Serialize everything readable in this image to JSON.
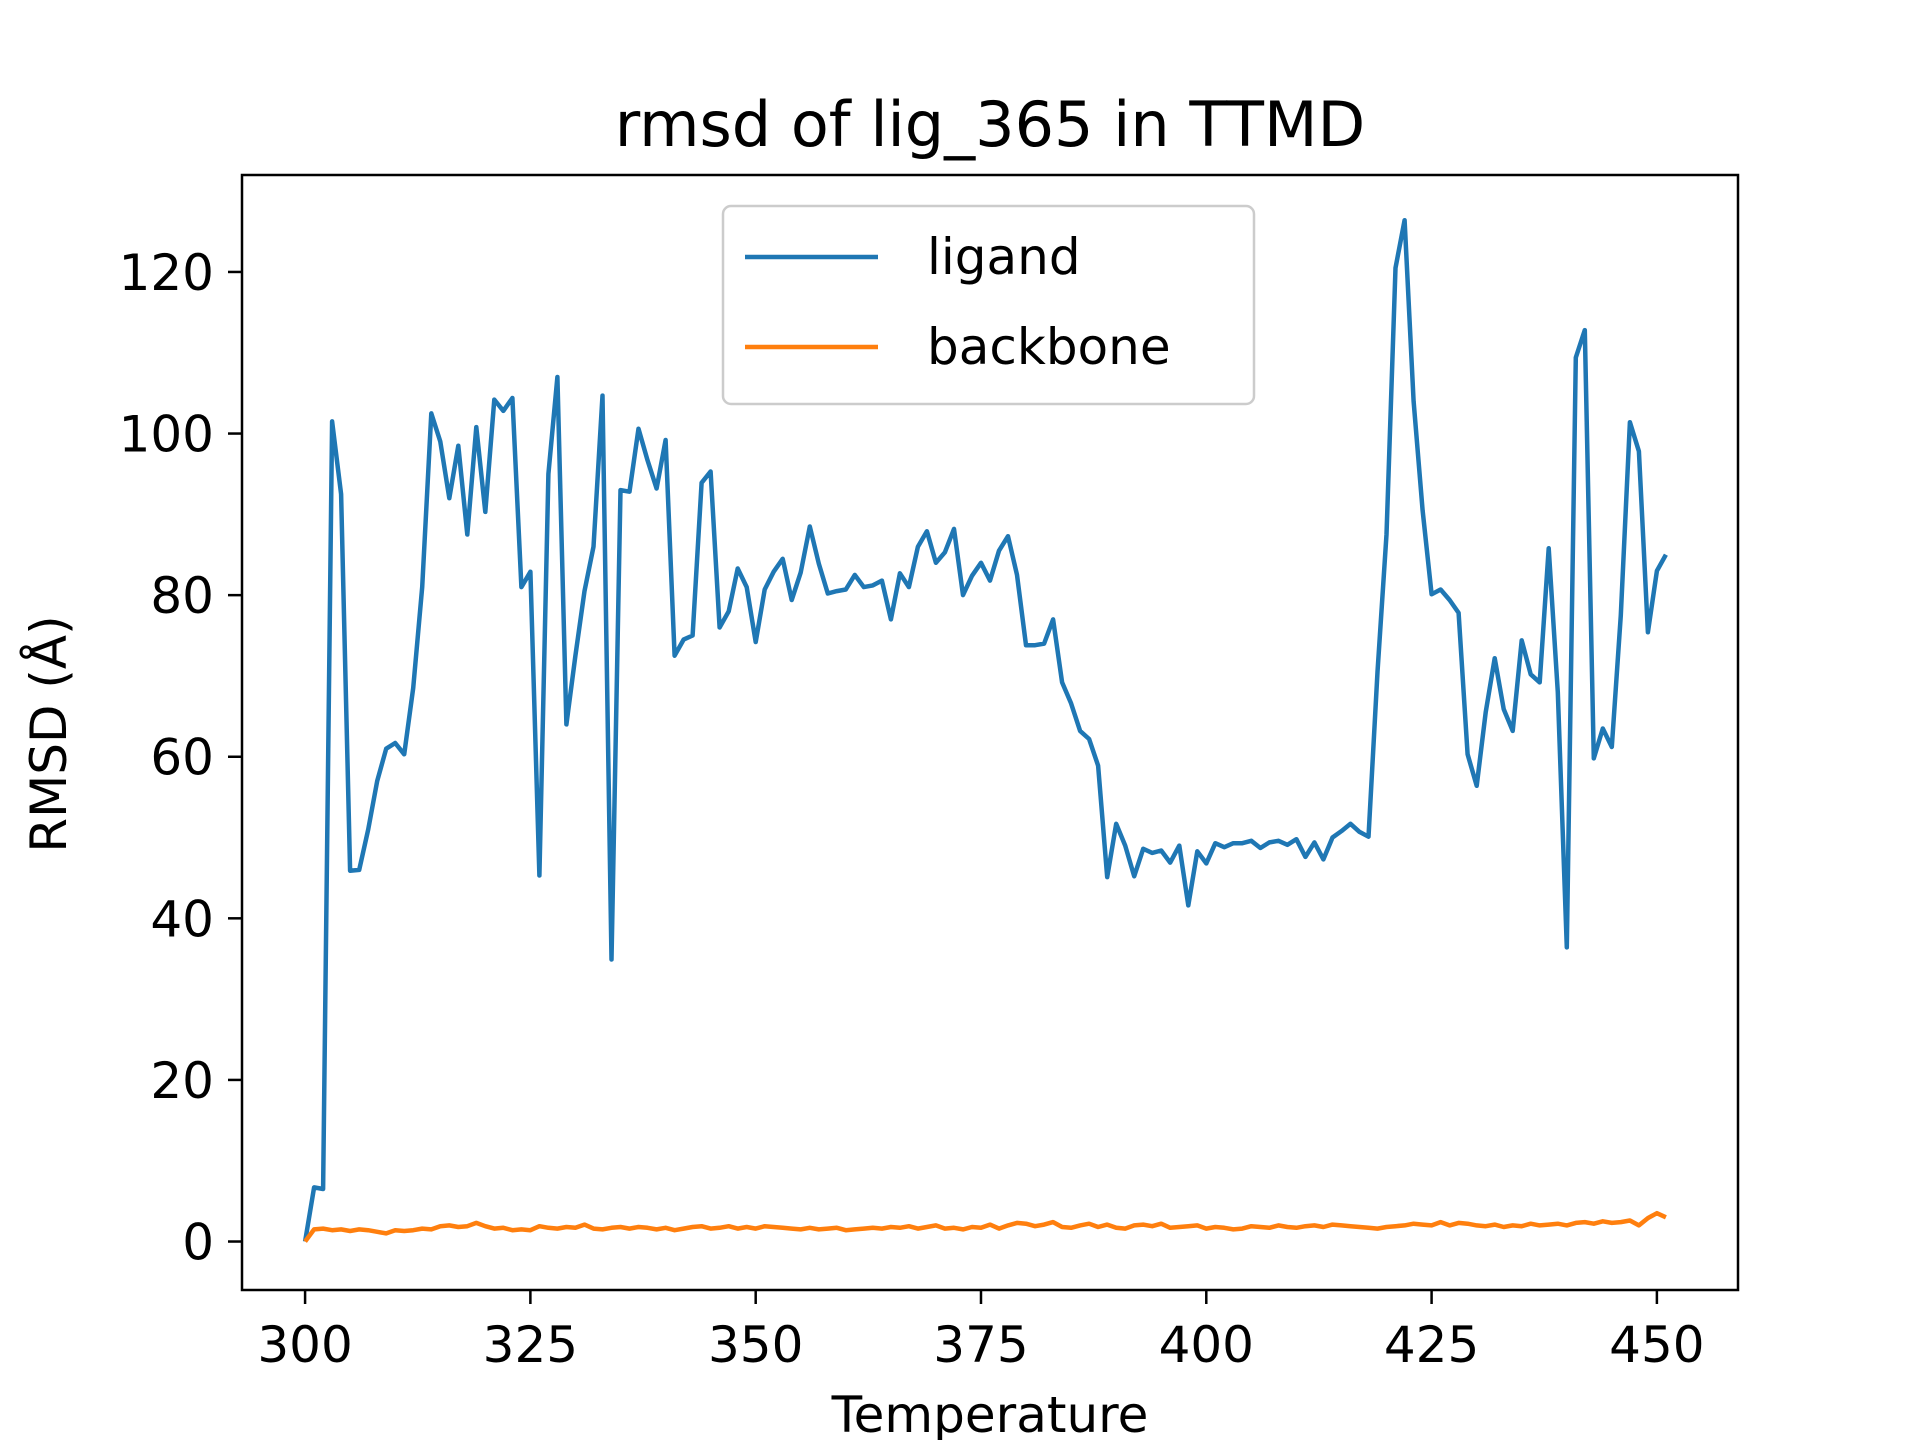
{
  "chart_data": {
    "type": "line",
    "title": "rmsd of lig_365 in TTMD",
    "xlabel": "Temperature",
    "ylabel": "RMSD (Å)",
    "xlim": [
      293,
      459
    ],
    "ylim": [
      -6,
      132
    ],
    "xticks": [
      300,
      325,
      350,
      375,
      400,
      425,
      450
    ],
    "yticks": [
      0,
      20,
      40,
      60,
      80,
      100,
      120
    ],
    "xtick_labels": [
      "300",
      "325",
      "350",
      "375",
      "400",
      "425",
      "450"
    ],
    "ytick_labels": [
      "0",
      "20",
      "40",
      "60",
      "80",
      "100",
      "120"
    ],
    "grid": false,
    "legend_position": "upper center",
    "series": [
      {
        "name": "ligand",
        "color": "#1f77b4",
        "x": [
          300,
          301,
          302,
          303,
          304,
          305,
          306,
          307,
          308,
          309,
          310,
          311,
          312,
          313,
          314,
          315,
          316,
          317,
          318,
          319,
          320,
          321,
          322,
          323,
          324,
          325,
          326,
          327,
          328,
          329,
          330,
          331,
          332,
          333,
          334,
          335,
          336,
          337,
          338,
          339,
          340,
          341,
          342,
          343,
          344,
          345,
          346,
          347,
          348,
          349,
          350,
          351,
          352,
          353,
          354,
          355,
          356,
          357,
          358,
          359,
          360,
          361,
          362,
          363,
          364,
          365,
          366,
          367,
          368,
          369,
          370,
          371,
          372,
          373,
          374,
          375,
          376,
          377,
          378,
          379,
          380,
          381,
          382,
          383,
          384,
          385,
          386,
          387,
          388,
          389,
          390,
          391,
          392,
          393,
          394,
          395,
          396,
          397,
          398,
          399,
          400,
          401,
          402,
          403,
          404,
          405,
          406,
          407,
          408,
          409,
          410,
          411,
          412,
          413,
          414,
          415,
          416,
          417,
          418,
          419,
          420,
          421,
          422,
          423,
          424,
          425,
          426,
          427,
          428,
          429,
          430,
          431,
          432,
          433,
          434,
          435,
          436,
          437,
          438,
          439,
          440,
          441,
          442,
          443,
          444,
          445,
          446,
          447,
          448,
          449,
          450,
          451
        ],
        "values": [
          0,
          6.7,
          6.5,
          101.5,
          92.5,
          45.9,
          46,
          51,
          57,
          61,
          61.7,
          60.3,
          68.5,
          81,
          102.5,
          99,
          92,
          98.5,
          87.5,
          100.8,
          90.3,
          104.2,
          102.8,
          104.4,
          81,
          82.9,
          45.3,
          95,
          107,
          64,
          72.5,
          80.5,
          86,
          104.7,
          34.9,
          93,
          92.8,
          100.6,
          96.7,
          93.2,
          99.2,
          72.5,
          74.5,
          75,
          93.9,
          95.3,
          76,
          78,
          83.3,
          81,
          74.2,
          80.7,
          82.9,
          84.5,
          79.4,
          82.8,
          88.5,
          83.9,
          80.2,
          80.5,
          80.7,
          82.5,
          81,
          81.2,
          81.8,
          77,
          82.7,
          81,
          86,
          87.9,
          84,
          85.3,
          88.2,
          80,
          82.4,
          84,
          81.8,
          85.5,
          87.3,
          82.5,
          73.8,
          73.8,
          74,
          77,
          69.2,
          66.6,
          63.2,
          62.2,
          58.9,
          45.1,
          51.7,
          49,
          45.2,
          48.6,
          48.1,
          48.4,
          46.9,
          49,
          41.6,
          48.3,
          46.8,
          49.3,
          48.8,
          49.3,
          49.3,
          49.6,
          48.7,
          49.4,
          49.6,
          49.1,
          49.8,
          47.6,
          49.4,
          47.3,
          50,
          50.8,
          51.7,
          50.7,
          50.1,
          70.5,
          87.5,
          120.5,
          126.4,
          104,
          90.5,
          80.1,
          80.7,
          79.4,
          77.8,
          60.3,
          56.4,
          65.5,
          72.2,
          65.9,
          63.2,
          74.4,
          70.2,
          69.2,
          85.8,
          68,
          36.4,
          109.4,
          112.8,
          59.8,
          63.5,
          61.2,
          77.5,
          101.4,
          97.8,
          75.4,
          83,
          85
        ]
      },
      {
        "name": "backbone",
        "color": "#ff7f0e",
        "x": [
          300,
          301,
          302,
          303,
          304,
          305,
          306,
          307,
          308,
          309,
          310,
          311,
          312,
          313,
          314,
          315,
          316,
          317,
          318,
          319,
          320,
          321,
          322,
          323,
          324,
          325,
          326,
          327,
          328,
          329,
          330,
          331,
          332,
          333,
          334,
          335,
          336,
          337,
          338,
          339,
          340,
          341,
          342,
          343,
          344,
          345,
          346,
          347,
          348,
          349,
          350,
          351,
          352,
          353,
          354,
          355,
          356,
          357,
          358,
          359,
          360,
          361,
          362,
          363,
          364,
          365,
          366,
          367,
          368,
          369,
          370,
          371,
          372,
          373,
          374,
          375,
          376,
          377,
          378,
          379,
          380,
          381,
          382,
          383,
          384,
          385,
          386,
          387,
          388,
          389,
          390,
          391,
          392,
          393,
          394,
          395,
          396,
          397,
          398,
          399,
          400,
          401,
          402,
          403,
          404,
          405,
          406,
          407,
          408,
          409,
          410,
          411,
          412,
          413,
          414,
          415,
          416,
          417,
          418,
          419,
          420,
          421,
          422,
          423,
          424,
          425,
          426,
          427,
          428,
          429,
          430,
          431,
          432,
          433,
          434,
          435,
          436,
          437,
          438,
          439,
          440,
          441,
          442,
          443,
          444,
          445,
          446,
          447,
          448,
          449,
          450,
          451
        ],
        "values": [
          0,
          1.5,
          1.6,
          1.4,
          1.5,
          1.3,
          1.5,
          1.4,
          1.2,
          1.0,
          1.4,
          1.3,
          1.4,
          1.6,
          1.5,
          1.9,
          2.0,
          1.8,
          1.9,
          2.3,
          1.9,
          1.6,
          1.7,
          1.4,
          1.5,
          1.4,
          1.9,
          1.7,
          1.6,
          1.8,
          1.7,
          2.1,
          1.6,
          1.5,
          1.7,
          1.8,
          1.6,
          1.8,
          1.7,
          1.5,
          1.7,
          1.4,
          1.6,
          1.8,
          1.9,
          1.6,
          1.7,
          1.9,
          1.6,
          1.8,
          1.6,
          1.9,
          1.8,
          1.7,
          1.6,
          1.5,
          1.7,
          1.5,
          1.6,
          1.7,
          1.4,
          1.5,
          1.6,
          1.7,
          1.6,
          1.8,
          1.7,
          1.9,
          1.6,
          1.8,
          2.0,
          1.6,
          1.7,
          1.5,
          1.8,
          1.7,
          2.1,
          1.6,
          2.0,
          2.3,
          2.2,
          1.9,
          2.1,
          2.4,
          1.8,
          1.7,
          2.0,
          2.2,
          1.8,
          2.1,
          1.7,
          1.6,
          2.0,
          2.1,
          1.9,
          2.2,
          1.7,
          1.8,
          1.9,
          2.0,
          1.6,
          1.8,
          1.7,
          1.5,
          1.6,
          1.9,
          1.8,
          1.7,
          2.0,
          1.8,
          1.7,
          1.9,
          2.0,
          1.8,
          2.1,
          2.0,
          1.9,
          1.8,
          1.7,
          1.6,
          1.8,
          1.9,
          2.0,
          2.2,
          2.1,
          2.0,
          2.4,
          2.0,
          2.3,
          2.2,
          2.0,
          1.9,
          2.1,
          1.8,
          2.0,
          1.9,
          2.2,
          2.0,
          2.1,
          2.2,
          2.0,
          2.3,
          2.4,
          2.2,
          2.5,
          2.3,
          2.4,
          2.6,
          2.0,
          2.9,
          3.5,
          3.0
        ]
      }
    ]
  }
}
